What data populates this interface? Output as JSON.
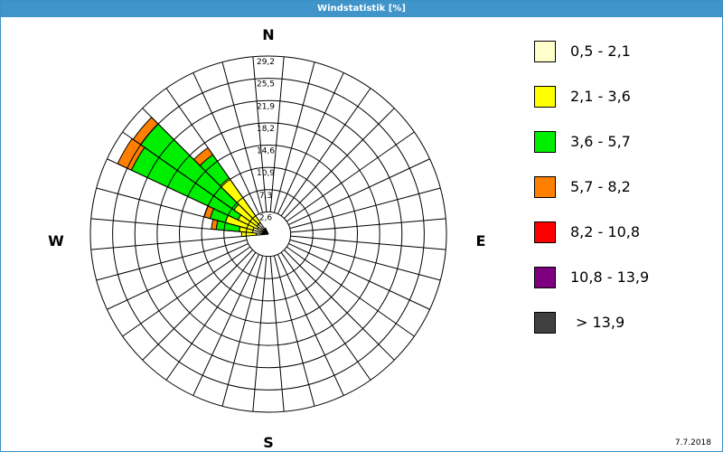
{
  "window": {
    "title": "Windstatistik [%]",
    "date": "7.7.2018"
  },
  "colors": {
    "titlebar": "#3f94c9",
    "grid": "#000000"
  },
  "chart_data": {
    "type": "wind_rose",
    "title": "Windstatistik [%]",
    "unit": "%",
    "rmax": 29.2,
    "ring_step": 3.65,
    "ring_labels": [
      "2,6",
      "7,3",
      "10,9",
      "14,6",
      "18,2",
      "21,9",
      "25,5",
      "29,2"
    ],
    "directions": {
      "n": "N",
      "e": "E",
      "s": "S",
      "w": "W"
    },
    "sector_width_deg": 10,
    "speed_classes": [
      {
        "label": "0,5 - 2,1",
        "color": "#ffffcc"
      },
      {
        "label": "2,1 - 3,6",
        "color": "#ffff00"
      },
      {
        "label": "3,6 - 5,7",
        "color": "#00ee00"
      },
      {
        "label": "5,7 - 8,2",
        "color": "#ff7f00"
      },
      {
        "label": "8,2 - 10,8",
        "color": "#ff0000"
      },
      {
        "label": "10,8 - 13,9",
        "color": "#7f007f"
      },
      {
        "label": "> 13,9",
        "color": "#404040"
      }
    ],
    "sectors": [
      {
        "direction_deg": 270,
        "cumulative": [
          2.0,
          4.4,
          4.4,
          4.4,
          4.4,
          4.4,
          4.4
        ]
      },
      {
        "direction_deg": 280,
        "cumulative": [
          2.6,
          4.8,
          8.6,
          9.4,
          9.4,
          9.4,
          9.4
        ]
      },
      {
        "direction_deg": 290,
        "cumulative": [
          2.6,
          7.3,
          9.9,
          10.9,
          10.9,
          10.9,
          10.9
        ]
      },
      {
        "direction_deg": 300,
        "cumulative": [
          2.0,
          5.5,
          24.8,
          27.3,
          27.3,
          27.3,
          27.3
        ]
      },
      {
        "direction_deg": 310,
        "cumulative": [
          2.3,
          6.9,
          25.6,
          27.1,
          27.1,
          27.1,
          27.1
        ]
      },
      {
        "direction_deg": 320,
        "cumulative": [
          2.3,
          11.2,
          15.9,
          17.3,
          17.3,
          17.3,
          17.3
        ]
      },
      {
        "direction_deg": 330,
        "cumulative": [
          1.1,
          1.1,
          1.1,
          1.1,
          1.1,
          1.1,
          1.1
        ]
      }
    ]
  }
}
